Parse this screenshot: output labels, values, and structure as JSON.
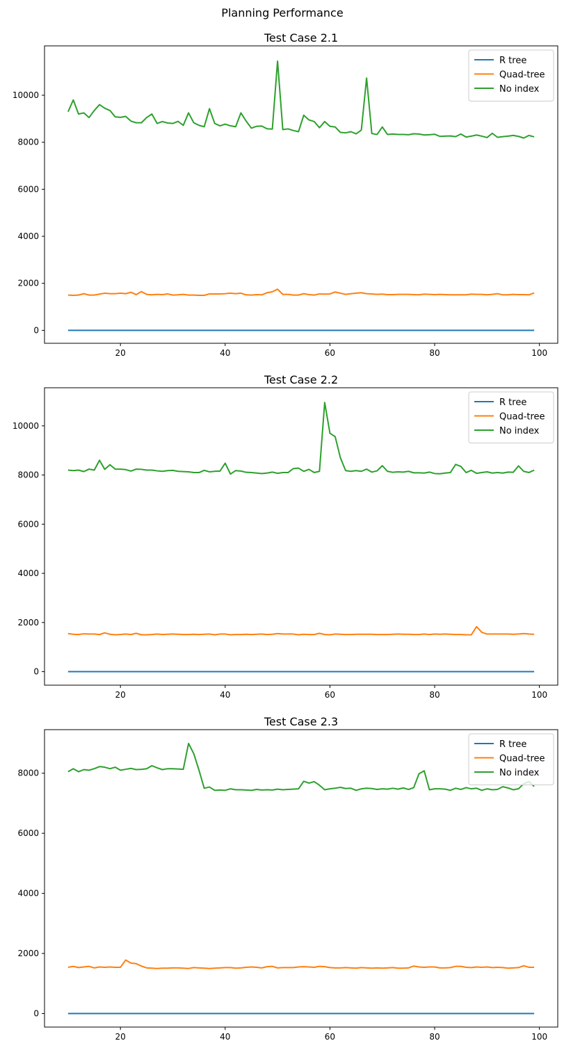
{
  "figure": {
    "suptitle": "Planning Performance"
  },
  "chart_data": [
    {
      "type": "line",
      "title": "Test Case 2.1",
      "xlim": [
        5.5,
        103.5
      ],
      "ylim": [
        -550,
        12100
      ],
      "xticks": [
        20,
        40,
        60,
        80,
        100
      ],
      "yticks": [
        0,
        2000,
        4000,
        6000,
        8000,
        10000
      ],
      "legend_position": "upper right",
      "x_start": 10,
      "x_end": 99,
      "series": [
        {
          "name": "R tree",
          "color": "#1f77b4",
          "values": [
            0
          ]
        },
        {
          "name": "Quad-tree",
          "color": "#ff7f0e",
          "values": [
            1500,
            1490,
            1500,
            1560,
            1500,
            1500,
            1540,
            1580,
            1560,
            1560,
            1580,
            1560,
            1620,
            1520,
            1650,
            1530,
            1510,
            1530,
            1520,
            1550,
            1500,
            1510,
            1530,
            1500,
            1500,
            1490,
            1490,
            1550,
            1550,
            1550,
            1560,
            1580,
            1560,
            1580,
            1510,
            1500,
            1520,
            1510,
            1600,
            1640,
            1750,
            1530,
            1530,
            1500,
            1500,
            1560,
            1520,
            1500,
            1550,
            1540,
            1550,
            1630,
            1580,
            1530,
            1560,
            1580,
            1600,
            1560,
            1550,
            1530,
            1540,
            1520,
            1520,
            1530,
            1530,
            1530,
            1520,
            1510,
            1540,
            1530,
            1520,
            1530,
            1520,
            1510,
            1510,
            1510,
            1510,
            1540,
            1530,
            1530,
            1510,
            1530,
            1560,
            1510,
            1510,
            1530,
            1520,
            1520,
            1510,
            1590
          ]
        },
        {
          "name": "No index",
          "color": "#2ca02c",
          "values": [
            9300,
            9800,
            9200,
            9250,
            9050,
            9350,
            9600,
            9450,
            9350,
            9080,
            9060,
            9100,
            8900,
            8830,
            8830,
            9050,
            9200,
            8800,
            8880,
            8820,
            8800,
            8890,
            8720,
            9250,
            8830,
            8720,
            8660,
            9430,
            8800,
            8700,
            8770,
            8700,
            8660,
            9250,
            8900,
            8600,
            8680,
            8690,
            8570,
            8560,
            11450,
            8540,
            8570,
            8500,
            8450,
            9150,
            8950,
            8880,
            8620,
            8880,
            8680,
            8650,
            8420,
            8400,
            8450,
            8360,
            8520,
            10730,
            8370,
            8330,
            8650,
            8330,
            8350,
            8330,
            8330,
            8320,
            8360,
            8350,
            8310,
            8320,
            8340,
            8250,
            8260,
            8270,
            8240,
            8350,
            8220,
            8260,
            8310,
            8260,
            8200,
            8380,
            8210,
            8240,
            8260,
            8290,
            8250,
            8180,
            8290,
            8230
          ]
        }
      ]
    },
    {
      "type": "line",
      "title": "Test Case 2.2",
      "xlim": [
        5.5,
        103.5
      ],
      "ylim": [
        -550,
        11550
      ],
      "xticks": [
        20,
        40,
        60,
        80,
        100
      ],
      "yticks": [
        0,
        2000,
        4000,
        6000,
        8000,
        10000
      ],
      "legend_position": "upper right",
      "x_start": 10,
      "x_end": 99,
      "series": [
        {
          "name": "R tree",
          "color": "#1f77b4",
          "values": [
            0
          ]
        },
        {
          "name": "Quad-tree",
          "color": "#ff7f0e",
          "values": [
            1550,
            1520,
            1510,
            1540,
            1530,
            1530,
            1510,
            1580,
            1520,
            1500,
            1510,
            1530,
            1510,
            1560,
            1500,
            1500,
            1510,
            1530,
            1510,
            1520,
            1530,
            1520,
            1510,
            1510,
            1520,
            1510,
            1520,
            1530,
            1500,
            1530,
            1530,
            1500,
            1510,
            1510,
            1520,
            1510,
            1520,
            1530,
            1510,
            1520,
            1550,
            1530,
            1530,
            1530,
            1500,
            1520,
            1510,
            1510,
            1560,
            1510,
            1500,
            1530,
            1520,
            1510,
            1510,
            1520,
            1520,
            1520,
            1520,
            1510,
            1510,
            1510,
            1520,
            1530,
            1520,
            1520,
            1510,
            1510,
            1530,
            1510,
            1530,
            1520,
            1530,
            1520,
            1510,
            1510,
            1500,
            1500,
            1830,
            1600,
            1530,
            1530,
            1530,
            1530,
            1530,
            1520,
            1530,
            1550,
            1530,
            1520
          ]
        },
        {
          "name": "No index",
          "color": "#2ca02c",
          "values": [
            8200,
            8180,
            8200,
            8140,
            8240,
            8200,
            8600,
            8230,
            8420,
            8240,
            8240,
            8220,
            8160,
            8240,
            8230,
            8200,
            8200,
            8170,
            8150,
            8180,
            8190,
            8150,
            8140,
            8130,
            8100,
            8100,
            8190,
            8130,
            8150,
            8160,
            8480,
            8040,
            8180,
            8160,
            8110,
            8100,
            8080,
            8060,
            8080,
            8120,
            8070,
            8100,
            8100,
            8260,
            8280,
            8150,
            8230,
            8100,
            8150,
            10950,
            9700,
            9560,
            8700,
            8180,
            8150,
            8180,
            8150,
            8240,
            8120,
            8170,
            8380,
            8150,
            8110,
            8130,
            8120,
            8150,
            8090,
            8090,
            8080,
            8120,
            8060,
            8050,
            8080,
            8100,
            8430,
            8350,
            8100,
            8190,
            8070,
            8100,
            8130,
            8080,
            8100,
            8080,
            8120,
            8110,
            8370,
            8150,
            8100,
            8200
          ]
        }
      ]
    },
    {
      "type": "line",
      "title": "Test Case 2.3",
      "xlim": [
        5.5,
        103.5
      ],
      "ylim": [
        -450,
        9450
      ],
      "xticks": [
        20,
        40,
        60,
        80,
        100
      ],
      "yticks": [
        0,
        2000,
        4000,
        6000,
        8000
      ],
      "legend_position": "upper right",
      "x_start": 10,
      "x_end": 99,
      "series": [
        {
          "name": "R tree",
          "color": "#1f77b4",
          "values": [
            0
          ]
        },
        {
          "name": "Quad-tree",
          "color": "#ff7f0e",
          "values": [
            1540,
            1570,
            1530,
            1550,
            1570,
            1520,
            1550,
            1540,
            1550,
            1540,
            1540,
            1780,
            1680,
            1660,
            1580,
            1520,
            1510,
            1500,
            1510,
            1510,
            1520,
            1520,
            1510,
            1500,
            1530,
            1520,
            1510,
            1500,
            1510,
            1520,
            1530,
            1530,
            1510,
            1520,
            1540,
            1550,
            1540,
            1520,
            1560,
            1570,
            1520,
            1530,
            1530,
            1530,
            1550,
            1560,
            1550,
            1540,
            1570,
            1560,
            1530,
            1520,
            1520,
            1530,
            1520,
            1510,
            1530,
            1520,
            1510,
            1520,
            1510,
            1520,
            1530,
            1510,
            1510,
            1520,
            1580,
            1550,
            1540,
            1550,
            1550,
            1520,
            1520,
            1530,
            1570,
            1570,
            1540,
            1530,
            1550,
            1540,
            1550,
            1530,
            1540,
            1530,
            1510,
            1520,
            1530,
            1590,
            1540,
            1540
          ]
        },
        {
          "name": "No index",
          "color": "#2ca02c",
          "values": [
            8050,
            8150,
            8050,
            8120,
            8100,
            8150,
            8220,
            8200,
            8150,
            8200,
            8100,
            8130,
            8160,
            8120,
            8130,
            8150,
            8250,
            8180,
            8120,
            8150,
            8150,
            8140,
            8130,
            8990,
            8650,
            8100,
            7500,
            7540,
            7430,
            7440,
            7430,
            7480,
            7450,
            7450,
            7440,
            7430,
            7460,
            7440,
            7450,
            7440,
            7470,
            7450,
            7460,
            7470,
            7480,
            7730,
            7670,
            7720,
            7600,
            7450,
            7480,
            7500,
            7530,
            7490,
            7500,
            7430,
            7480,
            7500,
            7490,
            7460,
            7480,
            7470,
            7500,
            7470,
            7510,
            7460,
            7520,
            7980,
            8080,
            7450,
            7480,
            7480,
            7470,
            7430,
            7500,
            7460,
            7520,
            7480,
            7500,
            7430,
            7480,
            7450,
            7460,
            7550,
            7510,
            7450,
            7480,
            7650,
            7720,
            7560
          ]
        }
      ]
    }
  ]
}
